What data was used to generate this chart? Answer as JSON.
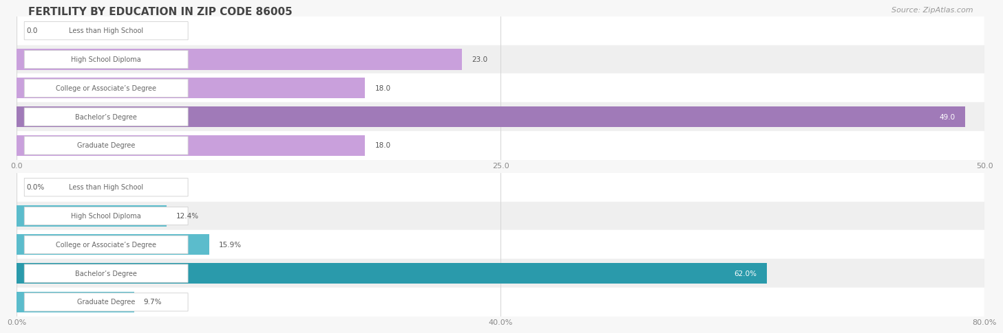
{
  "title": "FERTILITY BY EDUCATION IN ZIP CODE 86005",
  "source": "Source: ZipAtlas.com",
  "top_chart": {
    "categories": [
      "Less than High School",
      "High School Diploma",
      "College or Associate’s Degree",
      "Bachelor’s Degree",
      "Graduate Degree"
    ],
    "values": [
      0.0,
      23.0,
      18.0,
      49.0,
      18.0
    ],
    "bar_color": "#c9a0dc",
    "bar_color_highlight": "#a07ab8",
    "xlim": [
      0,
      50
    ],
    "xticks": [
      0.0,
      25.0,
      50.0
    ],
    "value_labels": [
      "0.0",
      "23.0",
      "18.0",
      "49.0",
      "18.0"
    ]
  },
  "bottom_chart": {
    "categories": [
      "Less than High School",
      "High School Diploma",
      "College or Associate’s Degree",
      "Bachelor’s Degree",
      "Graduate Degree"
    ],
    "values": [
      0.0,
      12.4,
      15.9,
      62.0,
      9.7
    ],
    "bar_color": "#5bbccc",
    "bar_color_highlight": "#2a9aab",
    "xlim": [
      0,
      80
    ],
    "xticks": [
      0.0,
      40.0,
      80.0
    ],
    "value_labels": [
      "0.0%",
      "12.4%",
      "15.9%",
      "62.0%",
      "9.7%"
    ]
  },
  "highlight_index": 3,
  "bg_color": "#f7f7f7",
  "row_colors": [
    "#ffffff",
    "#efefef"
  ],
  "label_box_color": "#ffffff",
  "label_box_edge": "#d0d0d0",
  "label_text_color": "#666666",
  "title_color": "#444444",
  "source_color": "#999999",
  "value_label_color_normal": "#555555",
  "value_label_color_highlight": "#ffffff",
  "grid_color": "#d8d8d8",
  "title_fontsize": 11,
  "source_fontsize": 8,
  "tick_fontsize": 8,
  "label_fontsize": 7,
  "value_fontsize": 7.5
}
